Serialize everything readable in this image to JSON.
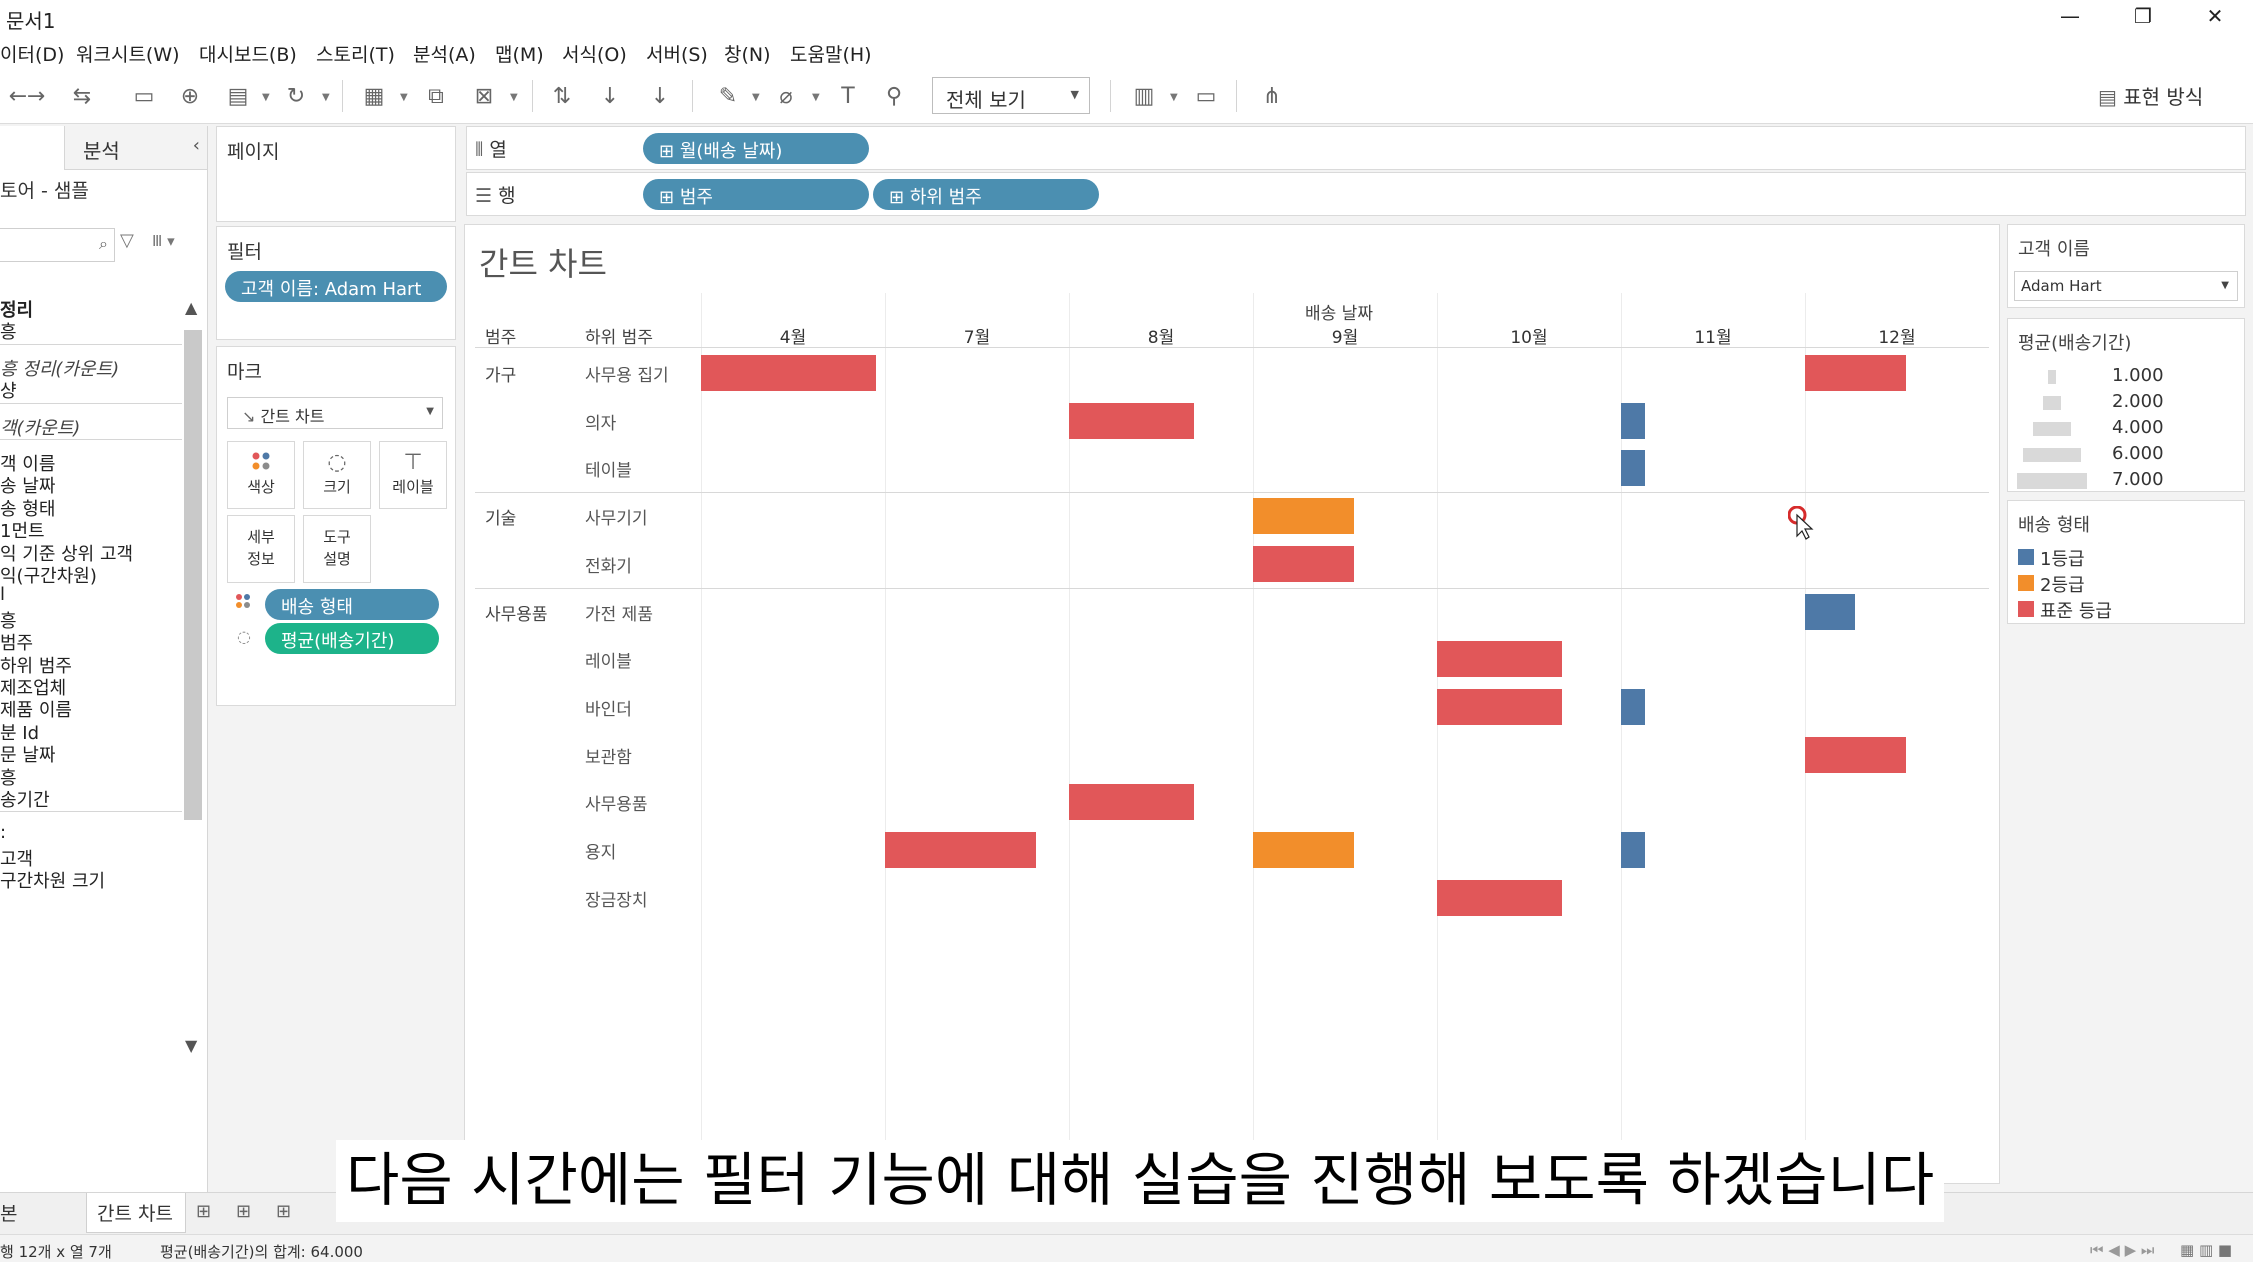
{
  "window": {
    "title": "문서1",
    "minimize": "—",
    "restore": "❐",
    "close": "✕"
  },
  "menu": [
    "이터(D)",
    "워크시트(W)",
    "대시보드(B)",
    "스토리(T)",
    "분석(A)",
    "맵(M)",
    "서식(O)",
    "서버(S)",
    "창(N)",
    "도움말(H)"
  ],
  "toolbar": {
    "view_select": "전체 보기",
    "show_me": "표현 방식",
    "icons": [
      "redo-icon",
      "pause-icon",
      "save-icon",
      "new-datasource-icon",
      "paste-icon",
      "refresh-icon",
      "new-sheet-icon",
      "duplicate-icon",
      "clear-icon",
      "swap-icon",
      "sort-asc-icon",
      "sort-desc-icon",
      "highlight-icon",
      "paperclip-icon",
      "text-icon",
      "pin-icon",
      "chart-icon",
      "presentation-icon",
      "share-icon"
    ]
  },
  "left_pane": {
    "tab_label": "분석",
    "source": "토어 - 샘플",
    "fields": [
      {
        "label": "정리",
        "style": "bold"
      },
      {
        "label": "흥",
        "style": ""
      },
      {
        "label": "흥 정리(카운트)",
        "style": "it"
      },
      {
        "label": "샹",
        "style": ""
      },
      {
        "label": "객(카운트)",
        "style": "it"
      },
      {
        "label": "객 이름",
        "style": ""
      },
      {
        "label": "송 날짜",
        "style": ""
      },
      {
        "label": "송 형태",
        "style": ""
      },
      {
        "label": "1먼트",
        "style": ""
      },
      {
        "label": "익 기준 상위 고객",
        "style": ""
      },
      {
        "label": "익(구간차원)",
        "style": ""
      },
      {
        "label": "l",
        "style": ""
      },
      {
        "label": "흥",
        "style": ""
      },
      {
        "label": "범주",
        "style": ""
      },
      {
        "label": "하위 범주",
        "style": ""
      },
      {
        "label": "제조업체",
        "style": ""
      },
      {
        "label": "제품 이름",
        "style": ""
      },
      {
        "label": "분 Id",
        "style": ""
      },
      {
        "label": "문 날짜",
        "style": ""
      },
      {
        "label": "흥",
        "style": ""
      },
      {
        "label": "송기간",
        "style": ""
      },
      {
        "label": ":",
        "style": ""
      },
      {
        "label": "고객",
        "style": ""
      },
      {
        "label": "구간차원 크기",
        "style": ""
      }
    ]
  },
  "pages_card": {
    "title": "페이지"
  },
  "filters_card": {
    "title": "필터",
    "filter_pill": "고객 이름: Adam Hart"
  },
  "marks_card": {
    "title": "마크",
    "mark_type": "간트 차트",
    "buttons": [
      {
        "label": "색상",
        "icon": "color-dots-icon"
      },
      {
        "label": "크기",
        "icon": "size-icon"
      },
      {
        "label": "레이블",
        "icon": "label-icon"
      },
      {
        "label": "세부\n정보",
        "icon": ""
      },
      {
        "label": "도구\n설명",
        "icon": ""
      }
    ],
    "pills": [
      {
        "label": "배송 형태",
        "color": "#4b8fb1",
        "icon": "color-dots-icon"
      },
      {
        "label": "평균(배송기간)",
        "color": "#1db38a",
        "icon": "size-icon"
      }
    ]
  },
  "shelves": {
    "columns_label": "열",
    "columns_pills": [
      "월(배송 날짜)"
    ],
    "rows_label": "행",
    "rows_pills": [
      "범주",
      "하위 범주"
    ]
  },
  "view": {
    "sheet_title": "간트 차트",
    "axis_title": "배송 날짜",
    "col_header_category": "범주",
    "col_header_subcategory": "하위 범주"
  },
  "chart_data": {
    "type": "gantt",
    "title": "간트 차트",
    "xlabel": "배송 날짜",
    "x_ticks": [
      "4월",
      "7월",
      "8월",
      "9월",
      "10월",
      "11월",
      "12월"
    ],
    "categories": [
      {
        "name": "가구",
        "subcategories": [
          "사무용 집기",
          "의자",
          "테이블"
        ]
      },
      {
        "name": "기술",
        "subcategories": [
          "사무기기",
          "전화기"
        ]
      },
      {
        "name": "사무용품",
        "subcategories": [
          "가전 제품",
          "레이블",
          "바인더",
          "보관함",
          "사무용품",
          "용지",
          "장금장치"
        ]
      }
    ],
    "series_colors": {
      "1등급": "#4e79a7",
      "2등급": "#f28e2b",
      "표준 등급": "#e15759"
    },
    "bars": [
      {
        "subcategory": "사무용 집기",
        "start_month": "4월",
        "start_offset": 0.0,
        "duration_months": 0.95,
        "shipping": "표준 등급"
      },
      {
        "subcategory": "사무용 집기",
        "start_month": "12월",
        "start_offset": 0.0,
        "duration_months": 0.55,
        "shipping": "표준 등급"
      },
      {
        "subcategory": "의자",
        "start_month": "8월",
        "start_offset": 0.0,
        "duration_months": 0.68,
        "shipping": "표준 등급"
      },
      {
        "subcategory": "의자",
        "start_month": "11월",
        "start_offset": 0.0,
        "duration_months": 0.13,
        "shipping": "1등급"
      },
      {
        "subcategory": "테이블",
        "start_month": "11월",
        "start_offset": 0.0,
        "duration_months": 0.13,
        "shipping": "1등급"
      },
      {
        "subcategory": "사무기기",
        "start_month": "9월",
        "start_offset": 0.0,
        "duration_months": 0.55,
        "shipping": "2등급"
      },
      {
        "subcategory": "전화기",
        "start_month": "9월",
        "start_offset": 0.0,
        "duration_months": 0.55,
        "shipping": "표준 등급"
      },
      {
        "subcategory": "가전 제품",
        "start_month": "12월",
        "start_offset": 0.0,
        "duration_months": 0.27,
        "shipping": "1등급"
      },
      {
        "subcategory": "레이블",
        "start_month": "10월",
        "start_offset": 0.0,
        "duration_months": 0.68,
        "shipping": "표준 등급"
      },
      {
        "subcategory": "바인더",
        "start_month": "10월",
        "start_offset": 0.0,
        "duration_months": 0.68,
        "shipping": "표준 등급"
      },
      {
        "subcategory": "바인더",
        "start_month": "11월",
        "start_offset": 0.0,
        "duration_months": 0.13,
        "shipping": "1등급"
      },
      {
        "subcategory": "보관함",
        "start_month": "12월",
        "start_offset": 0.0,
        "duration_months": 0.55,
        "shipping": "표준 등급"
      },
      {
        "subcategory": "사무용품",
        "start_month": "8월",
        "start_offset": 0.0,
        "duration_months": 0.68,
        "shipping": "표준 등급"
      },
      {
        "subcategory": "용지",
        "start_month": "7월",
        "start_offset": 0.0,
        "duration_months": 0.82,
        "shipping": "표준 등급"
      },
      {
        "subcategory": "용지",
        "start_month": "9월",
        "start_offset": 0.0,
        "duration_months": 0.55,
        "shipping": "2등급"
      },
      {
        "subcategory": "용지",
        "start_month": "11월",
        "start_offset": 0.0,
        "duration_months": 0.13,
        "shipping": "1등급"
      },
      {
        "subcategory": "장금장치",
        "start_month": "10월",
        "start_offset": 0.0,
        "duration_months": 0.68,
        "shipping": "표준 등급"
      }
    ]
  },
  "legend_customer": {
    "title": "고객 이름",
    "value": "Adam Hart"
  },
  "legend_size": {
    "title": "평균(배송기간)",
    "items": [
      "1.000",
      "2.000",
      "4.000",
      "6.000",
      "7.000"
    ]
  },
  "legend_color": {
    "title": "배송 형태",
    "items": [
      {
        "label": "1등급",
        "color": "#4e79a7"
      },
      {
        "label": "2등급",
        "color": "#f28e2b"
      },
      {
        "label": "표준 등급",
        "color": "#e15759"
      }
    ]
  },
  "tabs": {
    "left": "본",
    "active": "간트 차트"
  },
  "status": {
    "marks": "행 12개 x 열 7개",
    "sum": "평균(배송기간)의 합계: 64.000"
  },
  "subtitle": "다음 시간에는 필터 기능에 대해 실습을 진행해 보도록 하겠습니다"
}
